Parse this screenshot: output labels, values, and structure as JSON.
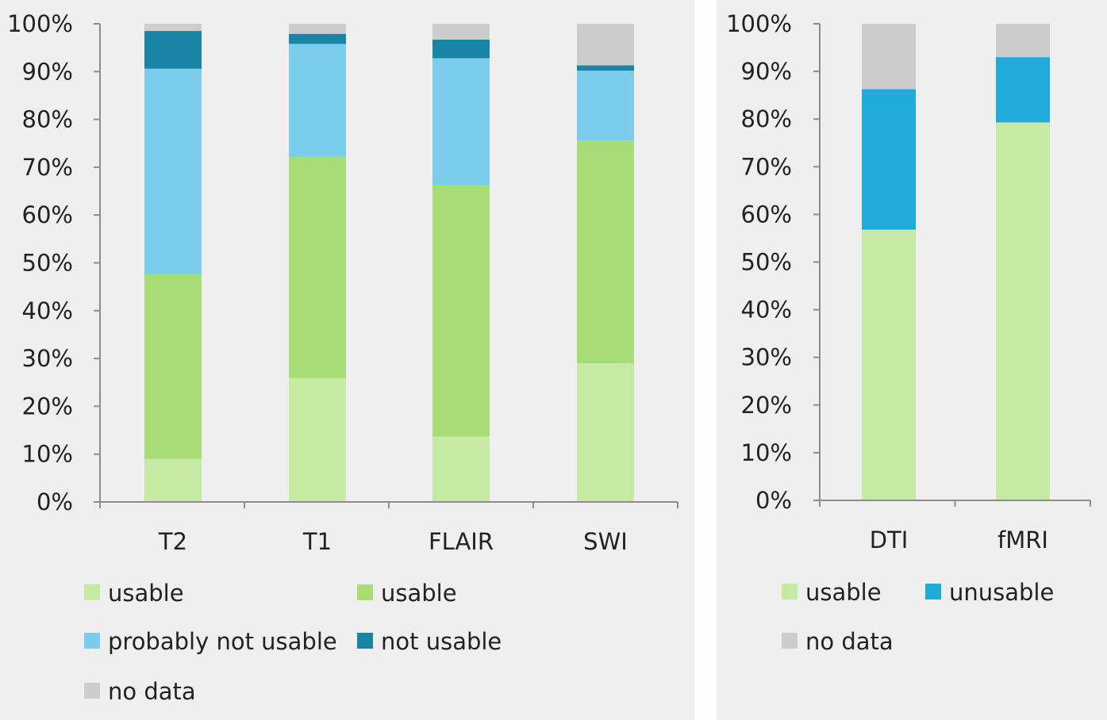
{
  "chart_data": [
    {
      "type": "bar",
      "stacked": true,
      "title": "",
      "xlabel": "",
      "ylabel": "",
      "ylim": [
        0,
        100
      ],
      "yticks": [
        "0%",
        "10%",
        "20%",
        "30%",
        "40%",
        "50%",
        "60%",
        "70%",
        "80%",
        "90%",
        "100%"
      ],
      "categories": [
        "T2",
        "T1",
        "FLAIR",
        "SWI"
      ],
      "series": [
        {
          "name": "usable",
          "color": "#c6e9a4",
          "values": [
            9,
            25.9,
            13.7,
            29
          ]
        },
        {
          "name": "usable",
          "color": "#a8dc76",
          "values": [
            38.6,
            46.3,
            52.5,
            46.6
          ]
        },
        {
          "name": "probably not usable",
          "color": "#7ccdeb",
          "values": [
            43,
            23.6,
            26.6,
            14.6
          ]
        },
        {
          "name": "not usable",
          "color": "#1a84a7",
          "values": [
            7.9,
            2.1,
            3.9,
            1.1
          ]
        },
        {
          "name": "no data",
          "color": "#cdcdcd",
          "values": [
            1.5,
            2.1,
            3.3,
            8.7
          ]
        }
      ],
      "legend_position": "bottom"
    },
    {
      "type": "bar",
      "stacked": true,
      "title": "",
      "xlabel": "",
      "ylabel": "",
      "ylim": [
        0,
        100
      ],
      "yticks": [
        "0%",
        "10%",
        "20%",
        "30%",
        "40%",
        "50%",
        "60%",
        "70%",
        "80%",
        "90%",
        "100%"
      ],
      "categories": [
        "DTI",
        "fMRI"
      ],
      "series": [
        {
          "name": "usable",
          "color": "#c6e9a4",
          "values": [
            56.8,
            79.3
          ]
        },
        {
          "name": "unusable",
          "color": "#21abdd",
          "values": [
            29.5,
            13.7
          ]
        },
        {
          "name": "no data",
          "color": "#cdcdcd",
          "values": [
            13.7,
            7
          ]
        }
      ],
      "legend_position": "bottom"
    }
  ]
}
